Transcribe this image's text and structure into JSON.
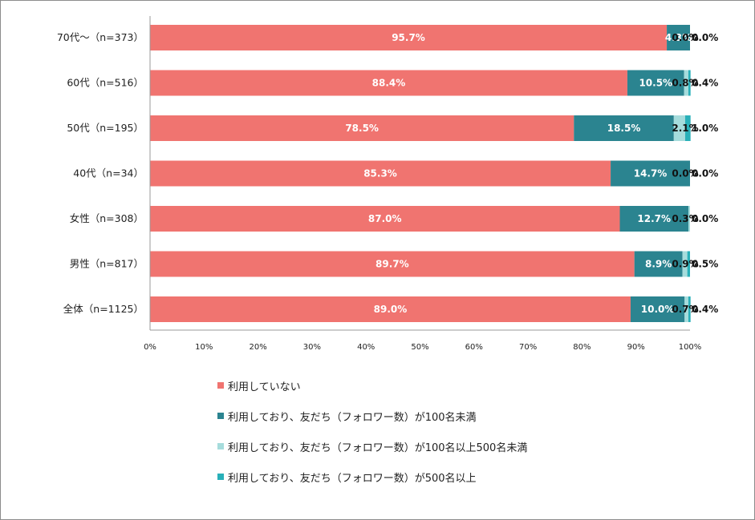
{
  "chart_data": {
    "type": "bar",
    "orientation": "horizontal",
    "stacked": "percent",
    "categories": [
      "70代～（n=373）",
      "60代（n=516）",
      "50代（n=195）",
      "40代（n=34）",
      "女性（n=308）",
      "男性（n=817）",
      "全体（n=1125）"
    ],
    "series": [
      {
        "name": "利用していない",
        "color": "#f07470",
        "values": [
          95.7,
          88.4,
          78.5,
          85.3,
          87.0,
          89.7,
          89.0
        ],
        "labels": [
          "95.7%",
          "88.4%",
          "78.5%",
          "85.3%",
          "87.0%",
          "89.7%",
          "89.0%"
        ]
      },
      {
        "name": "利用しており、友だち（フォロワー数）が100名未満",
        "color": "#2b8490",
        "values": [
          4.3,
          10.5,
          18.5,
          14.7,
          12.7,
          8.9,
          10.0
        ],
        "labels": [
          "4.3%",
          "10.5%",
          "18.5%",
          "14.7%",
          "12.7%",
          "8.9%",
          "10.0%"
        ]
      },
      {
        "name": "利用しており、友だち（フォロワー数）が100名以上500名未満",
        "color": "#a6dcdc",
        "values": [
          0.0,
          0.8,
          2.1,
          0.0,
          0.3,
          0.9,
          0.7
        ],
        "labels": [
          "0.0%",
          "0.8%",
          "2.1%",
          "0.0%",
          "0.3%",
          "0.9%",
          "0.7%"
        ]
      },
      {
        "name": "利用しており、友だち（フォロワー数）が500名以上",
        "color": "#29b0b9",
        "values": [
          0.0,
          0.4,
          1.0,
          0.0,
          0.0,
          0.5,
          0.4
        ],
        "labels": [
          "0.0%",
          "0.4%",
          "1.0%",
          "0.0%",
          "0.0%",
          "0.5%",
          "0.4%"
        ]
      }
    ],
    "x_ticks": [
      "0%",
      "10%",
      "20%",
      "30%",
      "40%",
      "50%",
      "60%",
      "70%",
      "80%",
      "90%",
      "100%"
    ],
    "xlim": [
      0,
      100
    ],
    "grid": false,
    "legend_position": "bottom",
    "label_text_colors": [
      "#ffffff",
      "#ffffff",
      "#111111",
      "#111111"
    ]
  }
}
